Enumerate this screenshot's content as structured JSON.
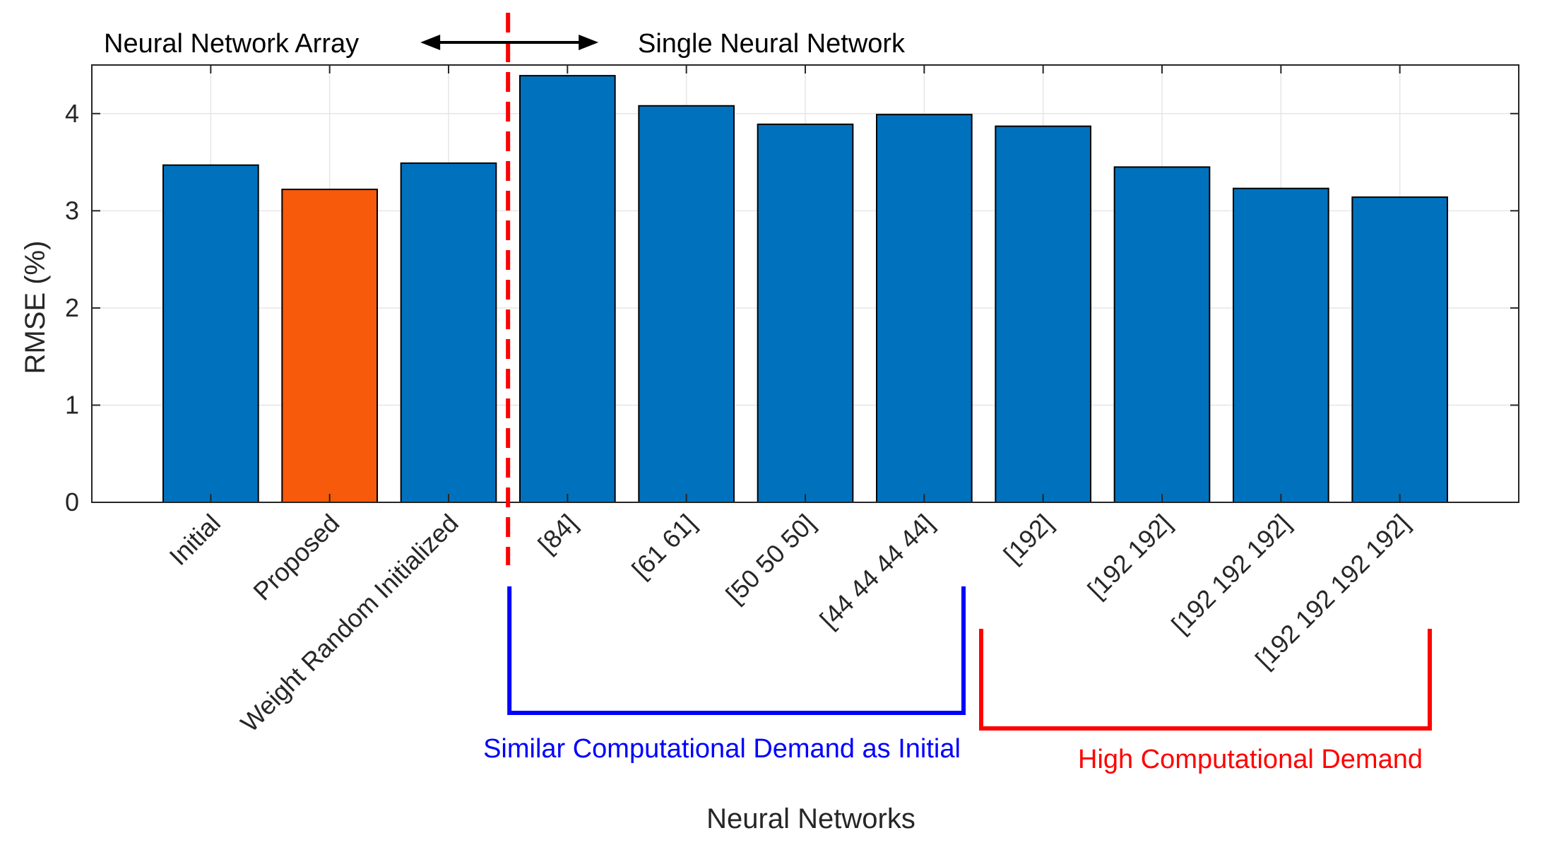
{
  "chart_data": {
    "type": "bar",
    "title": "",
    "xlabel": "Neural Networks",
    "ylabel": "RMSE (%)",
    "ylim": [
      0,
      4.5
    ],
    "yticks": [
      "0",
      "1",
      "2",
      "3",
      "4"
    ],
    "grid": true,
    "categories": [
      "Initial",
      "Proposed",
      "Weight Random Initialized",
      "[84]",
      "[61 61]",
      "[50 50 50]",
      "[44 44 44 44]",
      "[192]",
      "[192 192]",
      "[192 192 192]",
      "[192 192 192 192]"
    ],
    "values": [
      3.47,
      3.22,
      3.49,
      4.39,
      4.08,
      3.89,
      3.99,
      3.87,
      3.45,
      3.23,
      3.14
    ],
    "bar_colors": [
      "#0072BD",
      "#F75A0A",
      "#0072BD",
      "#0072BD",
      "#0072BD",
      "#0072BD",
      "#0072BD",
      "#0072BD",
      "#0072BD",
      "#0072BD",
      "#0072BD"
    ],
    "annotations": {
      "left_region_label": "Neural Network Array",
      "right_region_label": "Single Neural Network",
      "divider_after_category_index": 2,
      "divider_color": "#FF0000",
      "groups": [
        {
          "label": "Similar Computational Demand as Initial",
          "color": "#0000FF",
          "from_index": 3,
          "to_index": 6
        },
        {
          "label": "High Computational Demand",
          "color": "#FF0000",
          "from_index": 7,
          "to_index": 10
        }
      ]
    }
  }
}
